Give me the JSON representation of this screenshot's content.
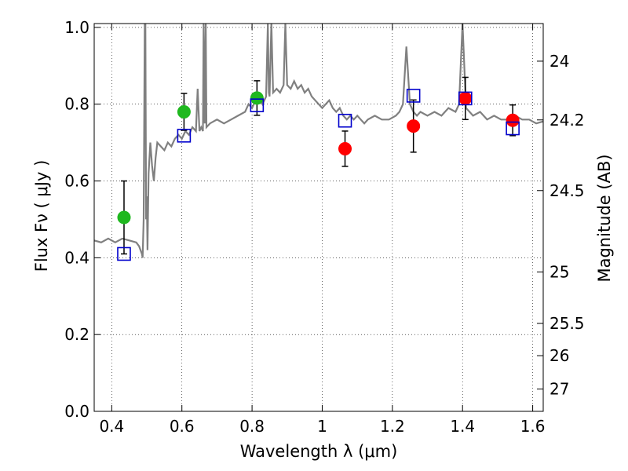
{
  "chart_data": {
    "type": "scatter",
    "xlabel": "Wavelength  λ (μm)",
    "ylabel": "Flux  Fν  ( μJy )",
    "y2label": "Magnitude (AB)",
    "xlim": [
      0.35,
      1.63
    ],
    "ylim": [
      0.0,
      1.01
    ],
    "grid": true,
    "x_ticks": [
      0.4,
      0.6,
      0.8,
      1.0,
      1.2,
      1.4,
      1.6
    ],
    "x_tick_labels": [
      "0.4",
      "0.6",
      "0.8",
      "1",
      "1.2",
      "1.4",
      "1.6"
    ],
    "y_ticks": [
      0.0,
      0.2,
      0.4,
      0.6,
      0.8,
      1.0
    ],
    "y_tick_labels": [
      "0.0",
      "0.2",
      "0.4",
      "0.6",
      "0.8",
      "1.0"
    ],
    "y2_ticks": [
      {
        "label": "24",
        "flux": 0.912
      },
      {
        "label": "24.2",
        "flux": 0.759
      },
      {
        "label": "24.5",
        "flux": 0.575
      },
      {
        "label": "25",
        "flux": 0.363
      },
      {
        "label": "25.5",
        "flux": 0.229
      },
      {
        "label": "26",
        "flux": 0.145
      },
      {
        "label": "27",
        "flux": 0.058
      }
    ],
    "series": [
      {
        "marker": "circle",
        "color": "#1fb81f",
        "points": [
          {
            "x": 0.435,
            "y": 0.505,
            "err": 0.095
          },
          {
            "x": 0.606,
            "y": 0.78,
            "err": 0.048
          },
          {
            "x": 0.814,
            "y": 0.816,
            "err": 0.045
          }
        ]
      },
      {
        "marker": "circle",
        "color": "#ff0000",
        "points": [
          {
            "x": 1.065,
            "y": 0.684,
            "err": 0.046
          },
          {
            "x": 1.26,
            "y": 0.743,
            "err": 0.068
          },
          {
            "x": 1.408,
            "y": 0.815,
            "err": 0.055
          },
          {
            "x": 1.543,
            "y": 0.758,
            "err": 0.04
          }
        ]
      },
      {
        "marker": "square",
        "color": "#0000cc",
        "points": [
          {
            "x": 0.435,
            "y": 0.41
          },
          {
            "x": 0.606,
            "y": 0.718
          },
          {
            "x": 0.814,
            "y": 0.797
          },
          {
            "x": 1.065,
            "y": 0.757
          },
          {
            "x": 1.26,
            "y": 0.822
          },
          {
            "x": 1.408,
            "y": 0.815
          },
          {
            "x": 1.543,
            "y": 0.737
          }
        ]
      }
    ],
    "spectrum": {
      "color": "#808080",
      "x": [
        0.35,
        0.37,
        0.39,
        0.41,
        0.43,
        0.45,
        0.47,
        0.478,
        0.482,
        0.486,
        0.488,
        0.491,
        0.494,
        0.496,
        0.498,
        0.5,
        0.502,
        0.505,
        0.51,
        0.515,
        0.52,
        0.525,
        0.53,
        0.54,
        0.55,
        0.56,
        0.57,
        0.58,
        0.59,
        0.6,
        0.61,
        0.62,
        0.63,
        0.64,
        0.645,
        0.65,
        0.655,
        0.66,
        0.662,
        0.665,
        0.668,
        0.67,
        0.68,
        0.7,
        0.72,
        0.74,
        0.76,
        0.78,
        0.79,
        0.8,
        0.81,
        0.82,
        0.83,
        0.84,
        0.845,
        0.848,
        0.85,
        0.855,
        0.86,
        0.87,
        0.88,
        0.89,
        0.895,
        0.9,
        0.91,
        0.92,
        0.93,
        0.94,
        0.95,
        0.96,
        0.97,
        0.98,
        0.99,
        1.0,
        1.01,
        1.02,
        1.03,
        1.04,
        1.05,
        1.06,
        1.07,
        1.08,
        1.09,
        1.1,
        1.11,
        1.12,
        1.13,
        1.15,
        1.17,
        1.19,
        1.21,
        1.22,
        1.23,
        1.24,
        1.25,
        1.26,
        1.27,
        1.28,
        1.3,
        1.32,
        1.34,
        1.36,
        1.38,
        1.39,
        1.4,
        1.41,
        1.42,
        1.43,
        1.45,
        1.47,
        1.49,
        1.51,
        1.53,
        1.55,
        1.57,
        1.59,
        1.61,
        1.63
      ],
      "y": [
        0.445,
        0.44,
        0.45,
        0.44,
        0.45,
        0.445,
        0.44,
        0.43,
        0.42,
        0.41,
        0.4,
        0.5,
        1.01,
        1.01,
        0.5,
        0.56,
        0.42,
        0.62,
        0.7,
        0.64,
        0.6,
        0.66,
        0.7,
        0.69,
        0.68,
        0.7,
        0.69,
        0.71,
        0.72,
        0.71,
        0.73,
        0.72,
        0.74,
        0.73,
        0.84,
        0.73,
        0.74,
        0.73,
        1.01,
        0.75,
        1.01,
        0.74,
        0.75,
        0.76,
        0.75,
        0.76,
        0.77,
        0.78,
        0.8,
        0.79,
        0.81,
        0.82,
        0.8,
        0.82,
        1.01,
        0.83,
        0.82,
        1.01,
        0.83,
        0.84,
        0.83,
        0.85,
        1.01,
        0.85,
        0.84,
        0.86,
        0.84,
        0.85,
        0.83,
        0.84,
        0.82,
        0.81,
        0.8,
        0.79,
        0.8,
        0.81,
        0.79,
        0.78,
        0.79,
        0.77,
        0.76,
        0.77,
        0.76,
        0.77,
        0.76,
        0.75,
        0.76,
        0.77,
        0.76,
        0.76,
        0.77,
        0.78,
        0.8,
        0.95,
        0.8,
        0.78,
        0.77,
        0.78,
        0.77,
        0.78,
        0.77,
        0.79,
        0.78,
        0.8,
        1.01,
        0.79,
        0.78,
        0.77,
        0.78,
        0.76,
        0.77,
        0.76,
        0.76,
        0.77,
        0.76,
        0.76,
        0.75,
        0.755
      ]
    }
  }
}
